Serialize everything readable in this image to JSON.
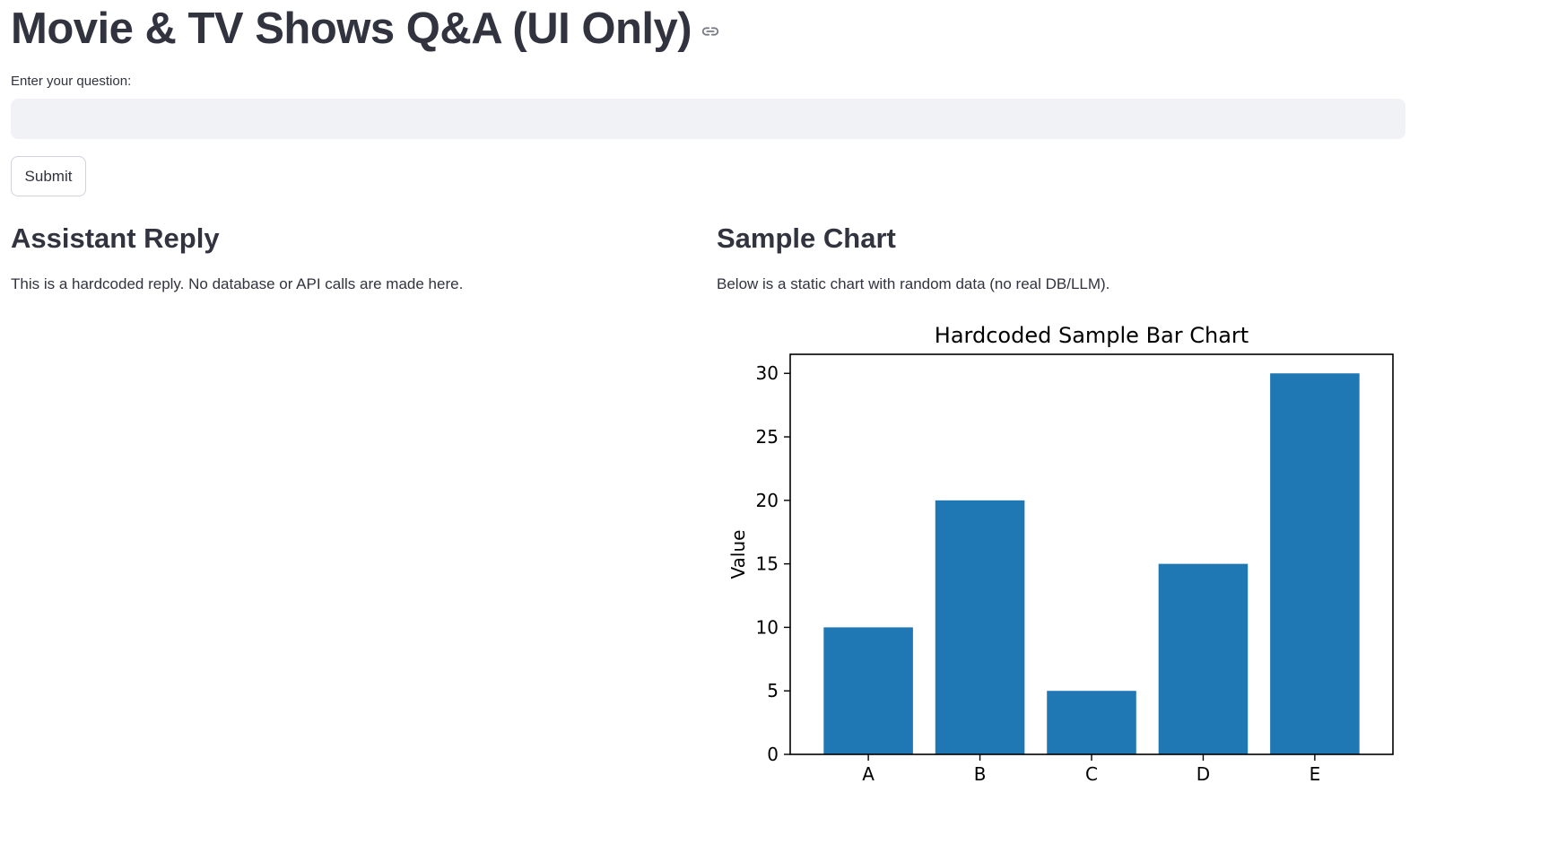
{
  "header": {
    "title": "Movie & TV Shows Q&A (UI Only)",
    "link_icon": "link-icon"
  },
  "question": {
    "label": "Enter your question:",
    "value": "",
    "placeholder": ""
  },
  "submit": {
    "label": "Submit"
  },
  "reply": {
    "heading": "Assistant Reply",
    "text": "This is a hardcoded reply. No database or API calls are made here."
  },
  "sample": {
    "heading": "Sample Chart",
    "text": "Below is a static chart with random data (no real DB/LLM)."
  },
  "chart_data": {
    "type": "bar",
    "title": "Hardcoded Sample Bar Chart",
    "xlabel": "",
    "ylabel": "Value",
    "categories": [
      "A",
      "B",
      "C",
      "D",
      "E"
    ],
    "values": [
      10,
      20,
      5,
      15,
      30
    ],
    "ylim": [
      0,
      31.5
    ],
    "yticks": [
      0,
      5,
      10,
      15,
      20,
      25,
      30
    ],
    "bar_color": "#1f77b4",
    "grid": false
  }
}
